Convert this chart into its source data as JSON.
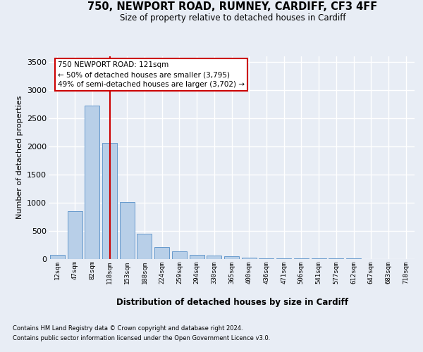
{
  "title_line1": "750, NEWPORT ROAD, RUMNEY, CARDIFF, CF3 4FF",
  "title_line2": "Size of property relative to detached houses in Cardiff",
  "xlabel": "Distribution of detached houses by size in Cardiff",
  "ylabel": "Number of detached properties",
  "footer_line1": "Contains HM Land Registry data © Crown copyright and database right 2024.",
  "footer_line2": "Contains public sector information licensed under the Open Government Licence v3.0.",
  "annotation_title": "750 NEWPORT ROAD: 121sqm",
  "annotation_line2": "← 50% of detached houses are smaller (3,795)",
  "annotation_line3": "49% of semi-detached houses are larger (3,702) →",
  "bar_labels": [
    "12sqm",
    "47sqm",
    "82sqm",
    "118sqm",
    "153sqm",
    "188sqm",
    "224sqm",
    "259sqm",
    "294sqm",
    "330sqm",
    "365sqm",
    "400sqm",
    "436sqm",
    "471sqm",
    "506sqm",
    "541sqm",
    "577sqm",
    "612sqm",
    "647sqm",
    "683sqm",
    "718sqm"
  ],
  "bar_values": [
    70,
    850,
    2720,
    2060,
    1010,
    450,
    210,
    135,
    70,
    60,
    40,
    15,
    10,
    5,
    3,
    2,
    1,
    1,
    0,
    0,
    0
  ],
  "bar_color": "#b8cfe8",
  "bar_edgecolor": "#6699cc",
  "redline_index": 3,
  "ylim_max": 3600,
  "yticks": [
    0,
    500,
    1000,
    1500,
    2000,
    2500,
    3000,
    3500
  ],
  "background_color": "#e8edf5",
  "grid_color": "#ffffff",
  "redline_color": "#cc0000",
  "ann_box_edge": "#cc0000",
  "ann_box_face": "#ffffff"
}
